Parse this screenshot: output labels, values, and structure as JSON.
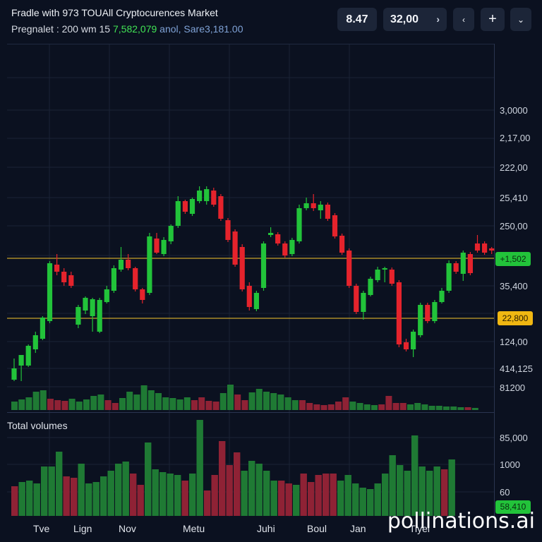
{
  "header": {
    "title": "Fradle with 973 TOUAll Cryptocurences Market",
    "subtitle_a": "Pregnalet : 200 wm 15",
    "subtitle_b": "7,582,079",
    "subtitle_c": "anol, Sare3,181.00",
    "price_a": "8.47",
    "price_b": "32,00",
    "icons": [
      "chevron-right-icon",
      "chevron-left-icon",
      "plus-icon",
      "chevron-down-icon"
    ]
  },
  "colors": {
    "background": "#0b1120",
    "up": "#22c33a",
    "down": "#e5232c",
    "vol_up": "#1f7a34",
    "vol_down": "#8f2235",
    "level_line": "#c8a32a",
    "grid": "#1b2436"
  },
  "chart_data": [
    {
      "type": "candlestick",
      "y_axis_labels": [
        "3,0000",
        "2,17,00",
        "222,00",
        "25,410",
        "250,00",
        "35,400",
        "124,00",
        "414,125",
        "81200"
      ],
      "x_axis_labels": [
        "Tve",
        "Lign",
        "Nov",
        "Metu",
        "Juhi",
        "Boul",
        "Jan",
        "Tiyel"
      ],
      "price_tags": [
        {
          "label": "+1,502",
          "color": "#22c33a"
        },
        {
          "label": "22,800",
          "color": "#f0b712"
        }
      ],
      "levels": [
        "+1,502",
        "22,800"
      ],
      "candles": [
        [
          538,
          522,
          508,
          540
        ],
        [
          518,
          503,
          505,
          540
        ],
        [
          518,
          490,
          488,
          520
        ],
        [
          495,
          475,
          470,
          500
        ],
        [
          480,
          450,
          448,
          482
        ],
        [
          455,
          373,
          370,
          458
        ],
        [
          375,
          385,
          360,
          390
        ],
        [
          385,
          400,
          380,
          405
        ],
        [
          390,
          405,
          385,
          408
        ],
        [
          460,
          435,
          432,
          465
        ],
        [
          440,
          422,
          420,
          445
        ],
        [
          448,
          424,
          422,
          470
        ],
        [
          470,
          425,
          422,
          472
        ],
        [
          428,
          410,
          405,
          430
        ],
        [
          412,
          380,
          376,
          415
        ],
        [
          382,
          368,
          350,
          385
        ],
        [
          368,
          380,
          360,
          383
        ],
        [
          380,
          410,
          378,
          413
        ],
        [
          410,
          425,
          408,
          430
        ],
        [
          415,
          335,
          330,
          418
        ],
        [
          338,
          358,
          330,
          360
        ],
        [
          360,
          340,
          336,
          363
        ],
        [
          342,
          320,
          318,
          346
        ],
        [
          320,
          285,
          278,
          323
        ],
        [
          285,
          300,
          283,
          303
        ],
        [
          303,
          282,
          280,
          306
        ],
        [
          285,
          270,
          264,
          288
        ],
        [
          285,
          268,
          264,
          290
        ],
        [
          270,
          290,
          266,
          293
        ],
        [
          278,
          310,
          275,
          313
        ],
        [
          312,
          340,
          309,
          343
        ],
        [
          328,
          375,
          325,
          378
        ],
        [
          350,
          410,
          346,
          413
        ],
        [
          405,
          435,
          400,
          440
        ],
        [
          438,
          415,
          412,
          441
        ],
        [
          408,
          345,
          342,
          412
        ],
        [
          333,
          330,
          322,
          336
        ],
        [
          332,
          345,
          329,
          348
        ],
        [
          345,
          362,
          342,
          365
        ],
        [
          360,
          340,
          337,
          363
        ],
        [
          342,
          295,
          290,
          345
        ],
        [
          295,
          288,
          280,
          298
        ],
        [
          288,
          295,
          275,
          299
        ],
        [
          298,
          290,
          285,
          310
        ],
        [
          290,
          310,
          287,
          313
        ],
        [
          305,
          335,
          302,
          338
        ],
        [
          334,
          358,
          331,
          361
        ],
        [
          355,
          405,
          352,
          408
        ],
        [
          405,
          442,
          402,
          445
        ],
        [
          442,
          415,
          412,
          453
        ],
        [
          418,
          395,
          392,
          420
        ],
        [
          397,
          382,
          378,
          400
        ],
        [
          382,
          380,
          378,
          400
        ],
        [
          382,
          402,
          379,
          405
        ],
        [
          400,
          488,
          397,
          492
        ],
        [
          485,
          495,
          480,
          498
        ],
        [
          495,
          470,
          467,
          506
        ],
        [
          475,
          432,
          429,
          478
        ],
        [
          432,
          455,
          429,
          458
        ],
        [
          455,
          428,
          425,
          458
        ],
        [
          428,
          412,
          408,
          430
        ],
        [
          412,
          373,
          369,
          415
        ],
        [
          373,
          385,
          370,
          388
        ],
        [
          388,
          358,
          355,
          398
        ],
        [
          360,
          387,
          357,
          390
        ],
        [
          345,
          355,
          333,
          358
        ],
        [
          345,
          358,
          342,
          361
        ],
        [
          352,
          355,
          350,
          360
        ]
      ],
      "volumes_top": [
        [
          1,
          12
        ],
        [
          1,
          15
        ],
        [
          1,
          18
        ],
        [
          1,
          26
        ],
        [
          1,
          28
        ],
        [
          0,
          16
        ],
        [
          0,
          14
        ],
        [
          0,
          13
        ],
        [
          1,
          16
        ],
        [
          1,
          12
        ],
        [
          1,
          15
        ],
        [
          1,
          20
        ],
        [
          1,
          22
        ],
        [
          0,
          14
        ],
        [
          0,
          10
        ],
        [
          1,
          17
        ],
        [
          1,
          26
        ],
        [
          1,
          22
        ],
        [
          1,
          35
        ],
        [
          1,
          28
        ],
        [
          1,
          24
        ],
        [
          1,
          18
        ],
        [
          1,
          17
        ],
        [
          1,
          15
        ],
        [
          1,
          18
        ],
        [
          0,
          14
        ],
        [
          0,
          18
        ],
        [
          0,
          13
        ],
        [
          0,
          12
        ],
        [
          1,
          24
        ],
        [
          1,
          36
        ],
        [
          0,
          22
        ],
        [
          0,
          14
        ],
        [
          1,
          25
        ],
        [
          1,
          30
        ],
        [
          1,
          26
        ],
        [
          1,
          24
        ],
        [
          1,
          22
        ],
        [
          1,
          18
        ],
        [
          1,
          14
        ],
        [
          0,
          14
        ],
        [
          0,
          10
        ],
        [
          0,
          8
        ],
        [
          0,
          7
        ],
        [
          0,
          8
        ],
        [
          0,
          12
        ],
        [
          0,
          18
        ],
        [
          1,
          12
        ],
        [
          1,
          10
        ],
        [
          1,
          8
        ],
        [
          1,
          7
        ],
        [
          0,
          8
        ],
        [
          0,
          20
        ],
        [
          0,
          10
        ],
        [
          0,
          10
        ],
        [
          1,
          8
        ],
        [
          1,
          10
        ],
        [
          1,
          8
        ],
        [
          1,
          6
        ],
        [
          1,
          6
        ],
        [
          1,
          5
        ],
        [
          1,
          5
        ],
        [
          1,
          4
        ],
        [
          0,
          4
        ],
        [
          1,
          3
        ]
      ],
      "volumes_bottom": [
        [
          0,
          42
        ],
        [
          1,
          48
        ],
        [
          1,
          50
        ],
        [
          1,
          46
        ],
        [
          1,
          70
        ],
        [
          1,
          70
        ],
        [
          1,
          91
        ],
        [
          0,
          56
        ],
        [
          0,
          54
        ],
        [
          1,
          74
        ],
        [
          1,
          46
        ],
        [
          1,
          48
        ],
        [
          1,
          56
        ],
        [
          1,
          64
        ],
        [
          1,
          74
        ],
        [
          1,
          77
        ],
        [
          0,
          60
        ],
        [
          0,
          44
        ],
        [
          1,
          104
        ],
        [
          1,
          66
        ],
        [
          1,
          62
        ],
        [
          1,
          60
        ],
        [
          1,
          58
        ],
        [
          0,
          50
        ],
        [
          1,
          60
        ],
        [
          1,
          136
        ],
        [
          0,
          36
        ],
        [
          0,
          58
        ],
        [
          0,
          106
        ],
        [
          0,
          72
        ],
        [
          0,
          90
        ],
        [
          1,
          64
        ],
        [
          1,
          78
        ],
        [
          1,
          74
        ],
        [
          1,
          64
        ],
        [
          1,
          50
        ],
        [
          0,
          50
        ],
        [
          0,
          46
        ],
        [
          1,
          44
        ],
        [
          0,
          60
        ],
        [
          0,
          48
        ],
        [
          0,
          58
        ],
        [
          0,
          60
        ],
        [
          0,
          60
        ],
        [
          1,
          50
        ],
        [
          1,
          58
        ],
        [
          1,
          46
        ],
        [
          1,
          40
        ],
        [
          1,
          38
        ],
        [
          1,
          46
        ],
        [
          1,
          60
        ],
        [
          1,
          86
        ],
        [
          1,
          72
        ],
        [
          1,
          64
        ],
        [
          1,
          114
        ],
        [
          1,
          70
        ],
        [
          1,
          64
        ],
        [
          1,
          70
        ],
        [
          0,
          66
        ],
        [
          1,
          80
        ]
      ]
    }
  ],
  "volume_panel": {
    "title": "Total volumes",
    "y_axis_labels": [
      "85,000",
      "1000",
      "60"
    ],
    "tag": "58,410"
  },
  "watermark": "pollinations.ai"
}
